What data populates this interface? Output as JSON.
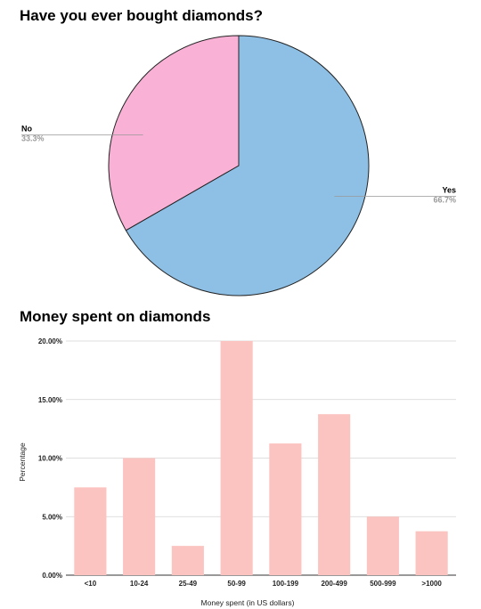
{
  "chart_data": [
    {
      "type": "pie",
      "title": "Have you ever bought diamonds?",
      "slices": [
        {
          "label": "Yes",
          "value": 66.7,
          "display": "66.7%",
          "color": "#8ec0e6"
        },
        {
          "label": "No",
          "value": 33.3,
          "display": "33.3%",
          "color": "#f9b1d6"
        }
      ]
    },
    {
      "type": "bar",
      "title": "Money spent on diamonds",
      "xlabel": "Money spent (in US dollars)",
      "ylabel": "Percentage",
      "categories": [
        "<10",
        "10-24",
        "25-49",
        "50-99",
        "100-199",
        "200-499",
        "500-999",
        ">1000"
      ],
      "values": [
        7.5,
        10.0,
        2.5,
        20.0,
        11.25,
        13.75,
        5.0,
        3.75
      ],
      "ylim": [
        0,
        20
      ],
      "yticks": [
        "0.00%",
        "5.00%",
        "10.00%",
        "15.00%",
        "20.00%"
      ],
      "grid": true,
      "color": "#fcc4c0"
    }
  ]
}
